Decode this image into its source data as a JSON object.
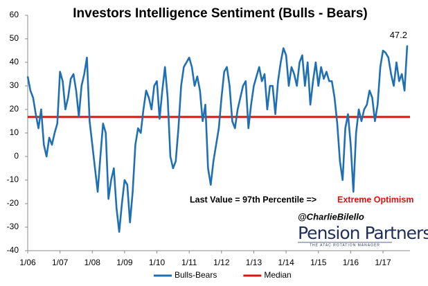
{
  "chart_data": {
    "type": "line",
    "title": "Investors Intelligence  Sentiment (Bulls - Bears)",
    "categories": [
      "1/06",
      null,
      null,
      null,
      null,
      null,
      null,
      null,
      null,
      null,
      null,
      null,
      "1/07",
      null,
      null,
      null,
      null,
      null,
      null,
      null,
      null,
      null,
      null,
      null,
      "1/08",
      null,
      null,
      null,
      null,
      null,
      null,
      null,
      null,
      null,
      null,
      null,
      "1/09",
      null,
      null,
      null,
      null,
      null,
      null,
      null,
      null,
      null,
      null,
      null,
      "1/10",
      null,
      null,
      null,
      null,
      null,
      null,
      null,
      null,
      null,
      null,
      null,
      "1/11",
      null,
      null,
      null,
      null,
      null,
      null,
      null,
      null,
      null,
      null,
      null,
      "1/12",
      null,
      null,
      null,
      null,
      null,
      null,
      null,
      null,
      null,
      null,
      null,
      "1/13",
      null,
      null,
      null,
      null,
      null,
      null,
      null,
      null,
      null,
      null,
      null,
      "1/14",
      null,
      null,
      null,
      null,
      null,
      null,
      null,
      null,
      null,
      null,
      null,
      "1/15",
      null,
      null,
      null,
      null,
      null,
      null,
      null,
      null,
      null,
      null,
      null,
      "1/16",
      null,
      null,
      null,
      null,
      null,
      null,
      null,
      null,
      null,
      null,
      null,
      "1/17",
      null,
      null,
      null,
      null,
      null,
      null,
      null,
      null,
      null
    ],
    "series": [
      {
        "name": "Bulls-Bears",
        "color": "#1f6fb4",
        "label_last": true,
        "values": [
          34,
          28,
          25,
          18,
          12,
          20,
          5,
          0,
          8,
          5,
          10,
          14,
          36,
          32,
          20,
          25,
          33,
          35,
          28,
          17,
          30,
          35,
          42,
          15,
          5,
          -5,
          -15,
          0,
          14,
          10,
          -18,
          -10,
          -5,
          -22,
          -32,
          -20,
          -10,
          -12,
          -28,
          -15,
          5,
          12,
          10,
          20,
          28,
          25,
          20,
          30,
          32,
          16,
          28,
          38,
          25,
          0,
          -5,
          -2,
          12,
          30,
          38,
          40,
          42,
          38,
          30,
          34,
          28,
          15,
          22,
          -5,
          -12,
          -2,
          5,
          12,
          25,
          36,
          38,
          30,
          15,
          12,
          20,
          25,
          30,
          32,
          12,
          22,
          30,
          34,
          38,
          32,
          35,
          20,
          30,
          30,
          18,
          32,
          40,
          46,
          43,
          30,
          38,
          35,
          30,
          40,
          43,
          30,
          40,
          22,
          32,
          40,
          30,
          38,
          33,
          36,
          32,
          32,
          25,
          14,
          -2,
          -10,
          12,
          18,
          5,
          -15,
          10,
          20,
          15,
          20,
          22,
          28,
          25,
          15,
          22,
          38,
          45,
          44,
          42,
          35,
          30,
          40,
          32,
          35,
          28,
          47.2
        ]
      }
    ],
    "reference_lines": [
      {
        "name": "Median",
        "value": 16.8,
        "color": "#e01010"
      }
    ],
    "ylim": [
      -40,
      60
    ],
    "yticks": [
      -40,
      -30,
      -20,
      -10,
      0,
      10,
      20,
      30,
      40,
      50,
      60
    ],
    "annotations": {
      "percentile": "Last Value = 97th Percentile =>",
      "verdict": "Extreme Optimism",
      "handle": "@CharlieBilello",
      "logo": "Pension Partners",
      "logo_tagline": "THE ATAC ROTATION MANAGER"
    }
  }
}
